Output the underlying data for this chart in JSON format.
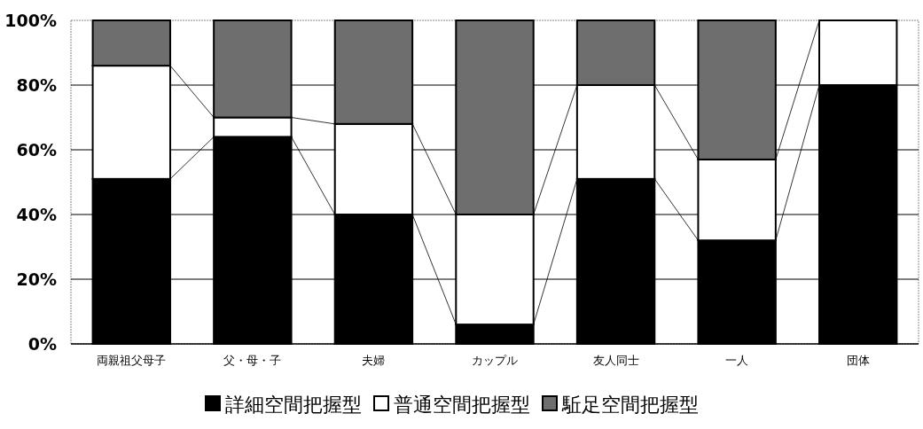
{
  "chart_data": {
    "type": "bar",
    "stacked": true,
    "categories": [
      "両親祖父母子",
      "父・母・子",
      "夫婦",
      "カップル",
      "友人同士",
      "一人",
      "団体"
    ],
    "series": [
      {
        "name": "詳細空間把握型",
        "color": "#000000",
        "values": [
          51,
          64,
          40,
          6,
          51,
          32,
          80
        ]
      },
      {
        "name": "普通空間把握型",
        "color": "#ffffff",
        "values": [
          35,
          6,
          28,
          34,
          29,
          25,
          20
        ]
      },
      {
        "name": "駈足空間把握型",
        "color": "#6e6e6e",
        "values": [
          14,
          30,
          32,
          60,
          20,
          43,
          0
        ]
      }
    ],
    "ylim": [
      0,
      100
    ],
    "yticks": [
      {
        "value": 0,
        "label": "0%"
      },
      {
        "value": 20,
        "label": "20%"
      },
      {
        "value": 40,
        "label": "40%"
      },
      {
        "value": 60,
        "label": "60%"
      },
      {
        "value": 80,
        "label": "80%"
      },
      {
        "value": 100,
        "label": "100%"
      }
    ],
    "grid": "y",
    "legend": "bottom"
  }
}
